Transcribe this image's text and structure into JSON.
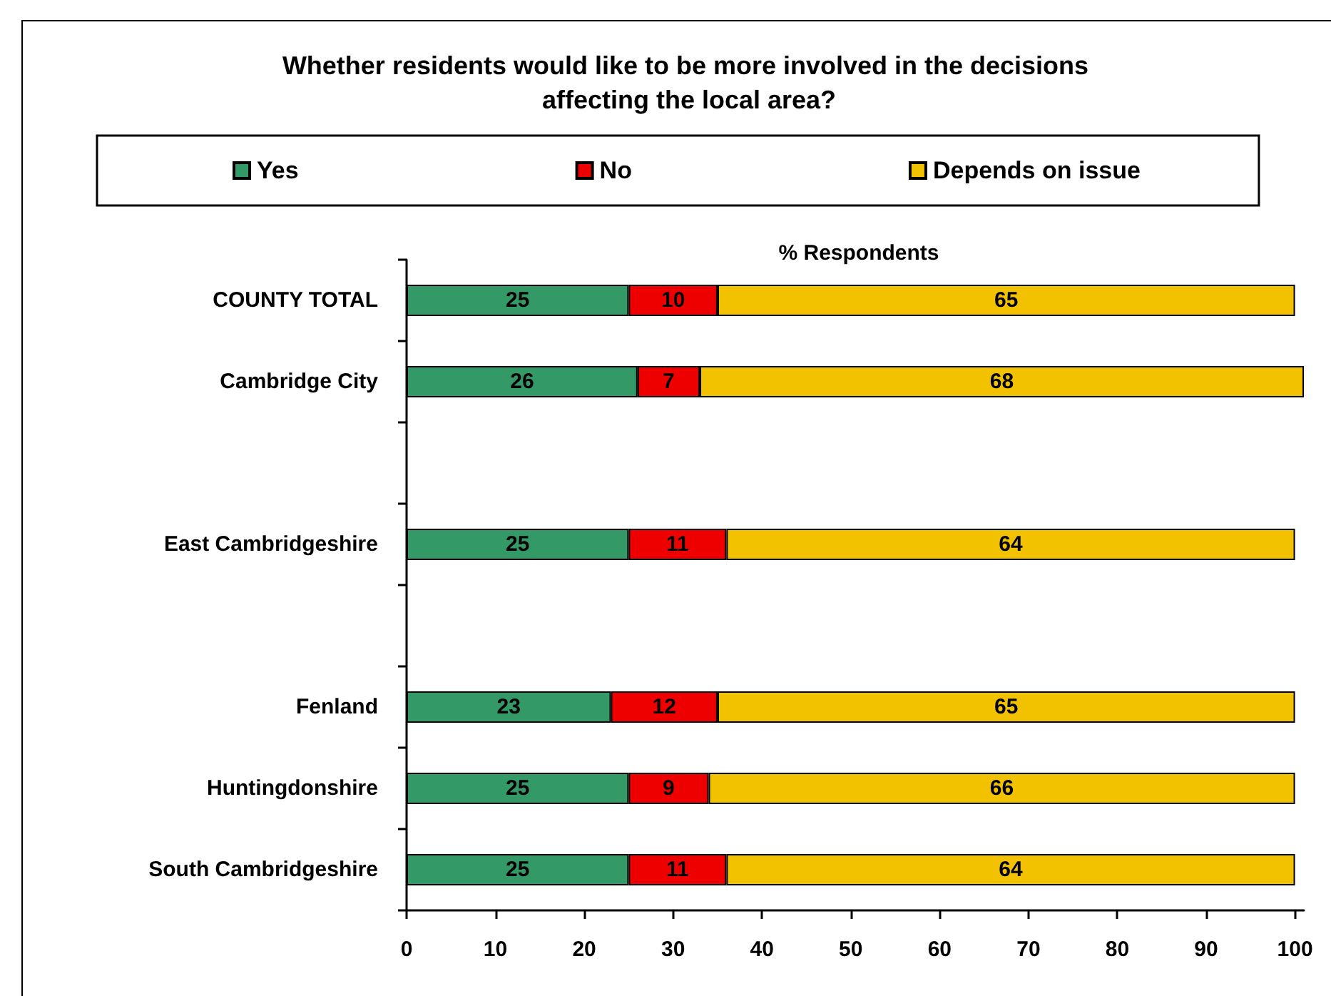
{
  "chart_data": {
    "type": "bar",
    "orientation": "horizontal",
    "stacked": true,
    "title": "Whether residents would like to be more involved in the decisions affecting the local area?",
    "xlabel": "% Respondents",
    "categories": [
      "COUNTY TOTAL",
      "Cambridge City",
      null,
      "East Cambridgeshire",
      null,
      "Fenland",
      "Huntingdonshire",
      "South Cambridgeshire"
    ],
    "series": [
      {
        "name": "Yes",
        "color": "#339966",
        "values": [
          25,
          26,
          null,
          25,
          null,
          23,
          25,
          25
        ]
      },
      {
        "name": "No",
        "color": "#ee0000",
        "values": [
          10,
          7,
          null,
          11,
          null,
          12,
          9,
          11
        ]
      },
      {
        "name": "Depends on issue",
        "color": "#f2c200",
        "values": [
          65,
          68,
          null,
          64,
          null,
          65,
          66,
          64
        ]
      }
    ],
    "xlim": [
      0,
      101
    ],
    "xticks": [
      0,
      10,
      20,
      30,
      40,
      50,
      60,
      70,
      80,
      90,
      100
    ],
    "data_labels": true,
    "grid": false,
    "legend": "top"
  }
}
